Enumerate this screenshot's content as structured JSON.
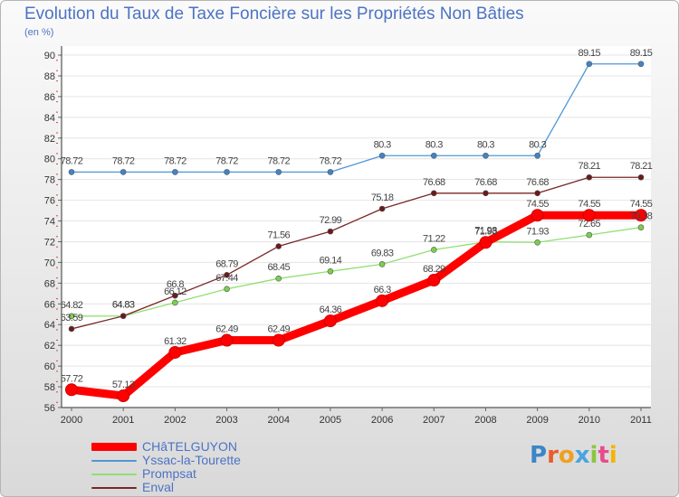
{
  "header": {
    "title": "Evolution du Taux de Taxe Foncière sur les Propriétés Non Bâties",
    "unit": "(en %)"
  },
  "logo": {
    "text": "Proxiti",
    "letters": [
      "P",
      "r",
      "o",
      "x",
      "i",
      "t",
      "i"
    ]
  },
  "chart_data": {
    "type": "line",
    "title": "Evolution du Taux de Taxe Foncière sur les Propriétés Non Bâties",
    "ylabel": "(en %)",
    "xlabel": "",
    "x": [
      "2000",
      "2001",
      "2002",
      "2003",
      "2004",
      "2005",
      "2006",
      "2007",
      "2008",
      "2009",
      "2010",
      "2011"
    ],
    "ylim": [
      56,
      90
    ],
    "yticks": [
      56,
      58,
      60,
      62,
      64,
      66,
      68,
      70,
      72,
      74,
      76,
      78,
      80,
      82,
      84,
      86,
      88,
      90
    ],
    "grid": "horizontal",
    "legend_position": "bottom-left",
    "series": [
      {
        "name": "CHâTELGUYON",
        "color": "#ff0000",
        "marker_color": "#ff0000",
        "emphasis": "thick",
        "values": [
          57.72,
          57.13,
          61.32,
          62.49,
          62.49,
          64.36,
          66.3,
          68.29,
          71.93,
          74.55,
          74.55,
          74.55
        ],
        "labels": [
          "57.72",
          "57.13",
          "61.32",
          "62.49",
          "62.49",
          "64.36",
          "66.3",
          "68.29",
          "71.93",
          "74.55",
          "74.55",
          "74.55"
        ]
      },
      {
        "name": "Yssac-la-Tourette",
        "color": "#4f97d6",
        "marker_color": "#3f85c8",
        "emphasis": "thin",
        "values": [
          78.72,
          78.72,
          78.72,
          78.72,
          78.72,
          78.72,
          80.3,
          80.3,
          80.3,
          80.3,
          89.15,
          89.15
        ],
        "labels": [
          "78.72",
          "78.72",
          "78.72",
          "78.72",
          "78.72",
          "78.72",
          "80.3",
          "80.3",
          "80.3",
          "80.3",
          "89.15",
          "89.15"
        ]
      },
      {
        "name": "Prompsat",
        "color": "#8fe070",
        "marker_color": "#7ad04c",
        "emphasis": "thin",
        "values": [
          64.82,
          64.83,
          66.12,
          67.44,
          68.45,
          69.14,
          69.83,
          71.22,
          71.98,
          71.93,
          72.65,
          73.38
        ],
        "labels": [
          "64.82",
          "64.83",
          "66.12",
          "67.44",
          "68.45",
          "69.14",
          "69.83",
          "71.22",
          "71.98",
          "71.93",
          "72.65",
          "73.38"
        ]
      },
      {
        "name": "Enval",
        "color": "#7a2626",
        "marker_color": "#6a1a1a",
        "emphasis": "thin",
        "values": [
          63.59,
          64.83,
          66.8,
          68.79,
          71.56,
          72.99,
          75.18,
          76.68,
          76.68,
          76.68,
          78.21,
          78.21
        ],
        "labels": [
          "63.59",
          "64.83",
          "66.8",
          "68.79",
          "71.56",
          "72.99",
          "75.18",
          "76.68",
          "76.68",
          "76.68",
          "78.21",
          "78.21"
        ]
      }
    ]
  }
}
